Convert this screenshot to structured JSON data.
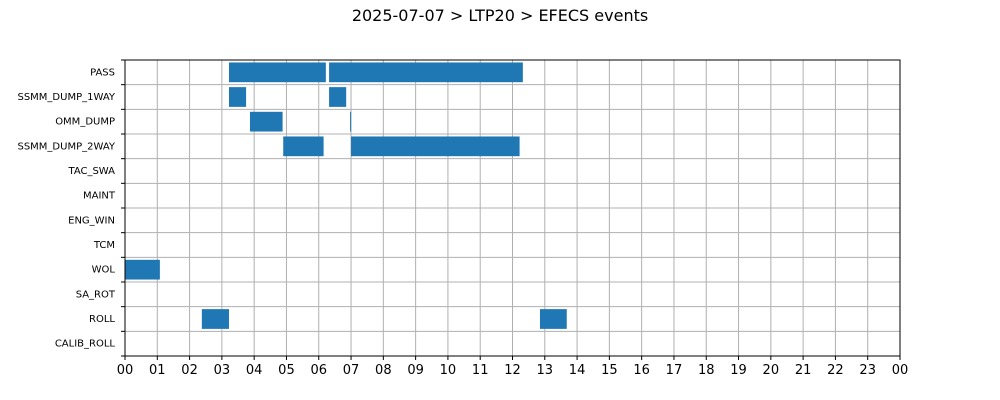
{
  "chart_data": {
    "type": "timeline",
    "title": "2025-07-07 > LTP20 > EFECS events",
    "xlabel": "",
    "ylabel": "",
    "x_unit": "hour",
    "xlim": [
      0,
      24
    ],
    "x_tick_labels": [
      "00",
      "01",
      "02",
      "03",
      "04",
      "05",
      "06",
      "07",
      "08",
      "09",
      "10",
      "11",
      "12",
      "13",
      "14",
      "15",
      "16",
      "17",
      "18",
      "19",
      "20",
      "21",
      "22",
      "23",
      "00"
    ],
    "categories": [
      "PASS",
      "SSMM_DUMP_1WAY",
      "OMM_DUMP",
      "SSMM_DUMP_2WAY",
      "TAC_SWA",
      "MAINT",
      "ENG_WIN",
      "TCM",
      "WOL",
      "SA_ROT",
      "ROLL",
      "CALIB_ROLL"
    ],
    "grid": true,
    "bar_color": "#1f77b4",
    "events": [
      {
        "category": "PASS",
        "start": 3.22,
        "end": 6.22
      },
      {
        "category": "PASS",
        "start": 6.32,
        "end": 12.32
      },
      {
        "category": "SSMM_DUMP_1WAY",
        "start": 3.22,
        "end": 3.75
      },
      {
        "category": "SSMM_DUMP_1WAY",
        "start": 6.32,
        "end": 6.85
      },
      {
        "category": "OMM_DUMP",
        "start": 3.87,
        "end": 4.88
      },
      {
        "category": "OMM_DUMP",
        "start": 6.97,
        "end": 7.0
      },
      {
        "category": "SSMM_DUMP_2WAY",
        "start": 4.9,
        "end": 6.15
      },
      {
        "category": "SSMM_DUMP_2WAY",
        "start": 7.0,
        "end": 12.22
      },
      {
        "category": "WOL",
        "start": 0.0,
        "end": 1.08
      },
      {
        "category": "ROLL",
        "start": 2.38,
        "end": 3.22
      },
      {
        "category": "ROLL",
        "start": 12.85,
        "end": 13.68
      }
    ]
  }
}
